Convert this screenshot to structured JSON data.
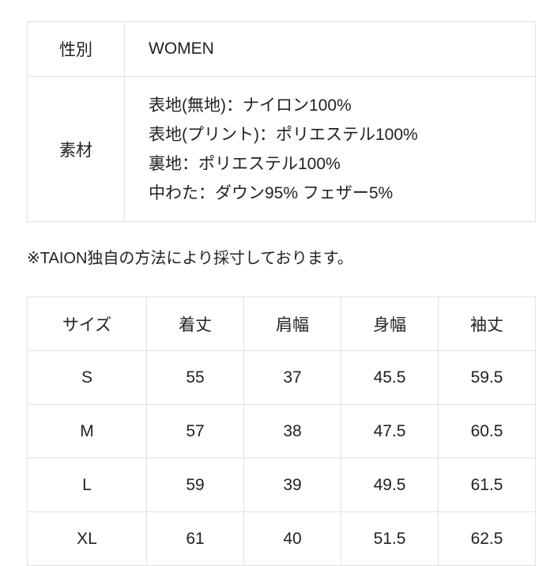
{
  "spec_table": {
    "gender_label": "性別",
    "gender_value": "WOMEN",
    "material_label": "素材",
    "materials": [
      "表地(無地)：ナイロン100%",
      "表地(プリント)：ポリエステル100%",
      "裏地：ポリエステル100%",
      "中わた：ダウン95% フェザー5%"
    ]
  },
  "note": "※TAION独自の方法により採寸しております。",
  "size_table": {
    "headers": [
      "サイズ",
      "着丈",
      "肩幅",
      "身幅",
      "袖丈"
    ],
    "rows": [
      [
        "S",
        "55",
        "37",
        "45.5",
        "59.5"
      ],
      [
        "M",
        "57",
        "38",
        "47.5",
        "60.5"
      ],
      [
        "L",
        "59",
        "39",
        "49.5",
        "61.5"
      ],
      [
        "XL",
        "61",
        "40",
        "51.5",
        "62.5"
      ]
    ]
  }
}
